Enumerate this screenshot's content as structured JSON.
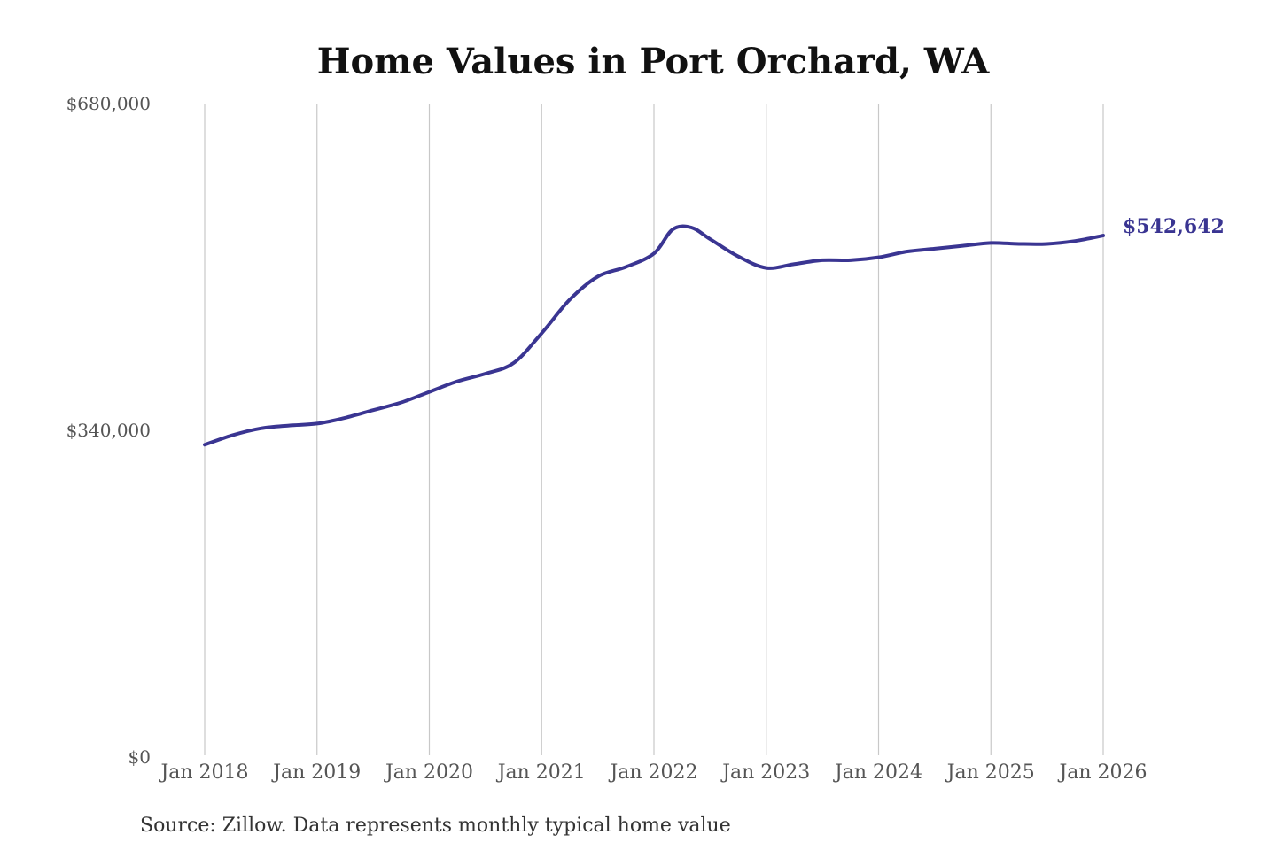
{
  "chart_data": {
    "type": "line",
    "title": "Home Values in Port Orchard, WA",
    "xlabel": "",
    "ylabel": "",
    "source": "Source: Zillow. Data represents monthly typical home value",
    "x_tick_labels": [
      "Jan 2018",
      "Jan 2019",
      "Jan 2020",
      "Jan 2021",
      "Jan 2022",
      "Jan 2023",
      "Jan 2024",
      "Jan 2025",
      "Jan 2026"
    ],
    "y_tick_labels": [
      "$0",
      "$340,000",
      "$680,000"
    ],
    "y_ticks": [
      0,
      340000,
      680000
    ],
    "ylim": [
      0,
      680000
    ],
    "xlim": [
      "2018-01",
      "2026-01"
    ],
    "grid": "vertical",
    "line_color": "#3a3592",
    "end_label": "$542,642",
    "series": [
      {
        "x": [
          "2018-01",
          "2018-04",
          "2018-07",
          "2018-10",
          "2019-01",
          "2019-04",
          "2019-07",
          "2019-10",
          "2020-01",
          "2020-04",
          "2020-07",
          "2020-10",
          "2021-01",
          "2021-04",
          "2021-07",
          "2021-10",
          "2022-01",
          "2022-03",
          "2022-05",
          "2022-07",
          "2022-10",
          "2023-01",
          "2023-04",
          "2023-07",
          "2023-10",
          "2024-01",
          "2024-04",
          "2024-07",
          "2024-10",
          "2025-01",
          "2025-04",
          "2025-07",
          "2025-10",
          "2026-01"
        ],
        "y": [
          325000,
          335000,
          342000,
          345000,
          347000,
          353000,
          361000,
          369000,
          380000,
          391000,
          399000,
          410000,
          441000,
          476000,
          500000,
          510000,
          524000,
          549000,
          551000,
          539000,
          521000,
          509000,
          513000,
          517000,
          517000,
          520000,
          526000,
          529000,
          532000,
          535000,
          534000,
          534000,
          537000,
          542642
        ]
      }
    ]
  }
}
